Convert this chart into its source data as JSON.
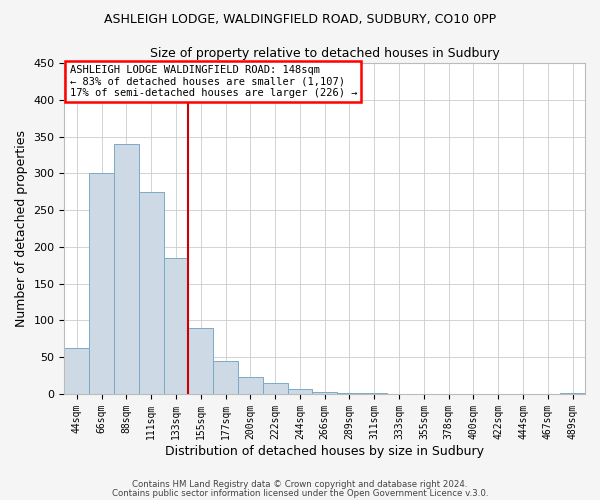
{
  "title": "ASHLEIGH LODGE, WALDINGFIELD ROAD, SUDBURY, CO10 0PP",
  "subtitle": "Size of property relative to detached houses in Sudbury",
  "xlabel": "Distribution of detached houses by size in Sudbury",
  "ylabel": "Number of detached properties",
  "bar_color": "#cdd9e5",
  "bar_edge_color": "#7aaac8",
  "vline_color": "#cc0000",
  "bin_labels": [
    "44sqm",
    "66sqm",
    "88sqm",
    "111sqm",
    "133sqm",
    "155sqm",
    "177sqm",
    "200sqm",
    "222sqm",
    "244sqm",
    "266sqm",
    "289sqm",
    "311sqm",
    "333sqm",
    "355sqm",
    "378sqm",
    "400sqm",
    "422sqm",
    "444sqm",
    "467sqm",
    "489sqm"
  ],
  "bar_heights": [
    62,
    300,
    340,
    275,
    185,
    90,
    45,
    23,
    15,
    7,
    3,
    2,
    1,
    0,
    0,
    0,
    0,
    0,
    0,
    0,
    2
  ],
  "ylim": [
    0,
    450
  ],
  "yticks": [
    0,
    50,
    100,
    150,
    200,
    250,
    300,
    350,
    400,
    450
  ],
  "annotation_title": "ASHLEIGH LODGE WALDINGFIELD ROAD: 148sqm",
  "annotation_line1": "← 83% of detached houses are smaller (1,107)",
  "annotation_line2": "17% of semi-detached houses are larger (226) →",
  "footer1": "Contains HM Land Registry data © Crown copyright and database right 2024.",
  "footer2": "Contains public sector information licensed under the Open Government Licence v.3.0.",
  "background_color": "#f5f5f5",
  "plot_background_color": "#ffffff",
  "grid_color": "#cccccc"
}
